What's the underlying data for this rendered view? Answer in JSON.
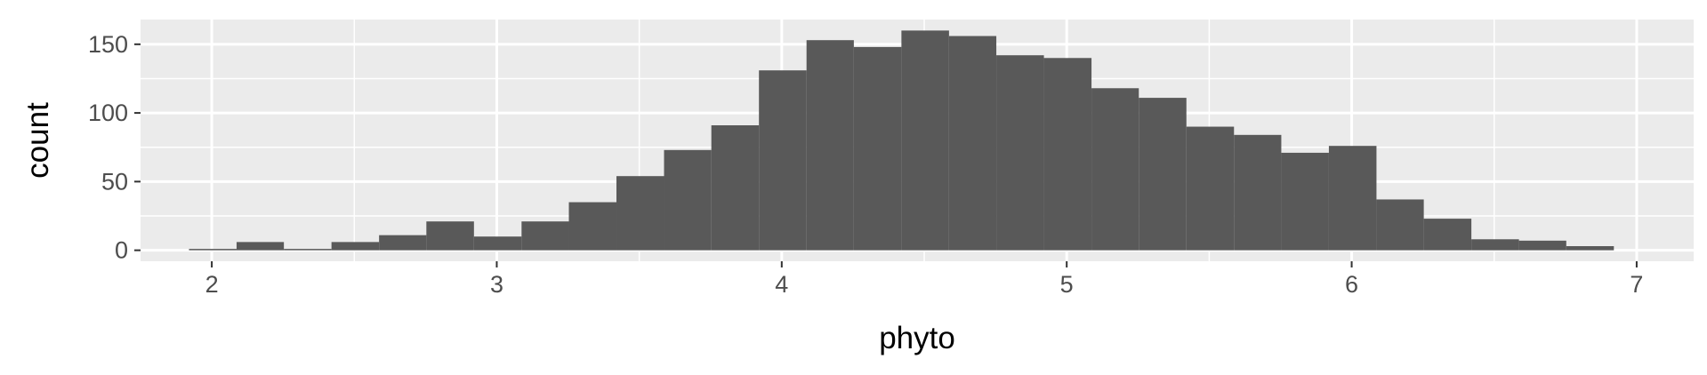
{
  "chart_data": {
    "type": "bar",
    "subtype": "histogram",
    "xlabel": "phyto",
    "ylabel": "count",
    "xlim": [
      1.75,
      7.2
    ],
    "ylim": [
      -8,
      168
    ],
    "x_ticks": [
      2,
      3,
      4,
      5,
      6,
      7
    ],
    "y_ticks": [
      0,
      50,
      100,
      150
    ],
    "grid": true,
    "bin_width": 0.167,
    "bins": [
      {
        "x0": 1.92,
        "x1": 2.087,
        "count": 1
      },
      {
        "x0": 2.087,
        "x1": 2.253,
        "count": 6
      },
      {
        "x0": 2.253,
        "x1": 2.42,
        "count": 1
      },
      {
        "x0": 2.42,
        "x1": 2.587,
        "count": 6
      },
      {
        "x0": 2.587,
        "x1": 2.753,
        "count": 11
      },
      {
        "x0": 2.753,
        "x1": 2.92,
        "count": 21
      },
      {
        "x0": 2.92,
        "x1": 3.087,
        "count": 10
      },
      {
        "x0": 3.087,
        "x1": 3.253,
        "count": 21
      },
      {
        "x0": 3.253,
        "x1": 3.42,
        "count": 35
      },
      {
        "x0": 3.42,
        "x1": 3.587,
        "count": 54
      },
      {
        "x0": 3.587,
        "x1": 3.753,
        "count": 73
      },
      {
        "x0": 3.753,
        "x1": 3.92,
        "count": 91
      },
      {
        "x0": 3.92,
        "x1": 4.087,
        "count": 131
      },
      {
        "x0": 4.087,
        "x1": 4.253,
        "count": 153
      },
      {
        "x0": 4.253,
        "x1": 4.42,
        "count": 148
      },
      {
        "x0": 4.42,
        "x1": 4.587,
        "count": 160
      },
      {
        "x0": 4.587,
        "x1": 4.753,
        "count": 156
      },
      {
        "x0": 4.753,
        "x1": 4.92,
        "count": 142
      },
      {
        "x0": 4.92,
        "x1": 5.087,
        "count": 140
      },
      {
        "x0": 5.087,
        "x1": 5.253,
        "count": 118
      },
      {
        "x0": 5.253,
        "x1": 5.42,
        "count": 111
      },
      {
        "x0": 5.42,
        "x1": 5.587,
        "count": 90
      },
      {
        "x0": 5.587,
        "x1": 5.753,
        "count": 84
      },
      {
        "x0": 5.753,
        "x1": 5.92,
        "count": 71
      },
      {
        "x0": 5.92,
        "x1": 6.087,
        "count": 76
      },
      {
        "x0": 6.087,
        "x1": 6.253,
        "count": 37
      },
      {
        "x0": 6.253,
        "x1": 6.42,
        "count": 23
      },
      {
        "x0": 6.42,
        "x1": 6.587,
        "count": 8
      },
      {
        "x0": 6.587,
        "x1": 6.753,
        "count": 7
      },
      {
        "x0": 6.753,
        "x1": 6.92,
        "count": 3
      }
    ],
    "colors": {
      "bar_fill": "#595959",
      "panel_background": "#ebebeb",
      "grid_line": "#ffffff",
      "tick_text": "#4d4d4d",
      "axis_title": "#000000",
      "tick_mark": "#333333"
    }
  }
}
